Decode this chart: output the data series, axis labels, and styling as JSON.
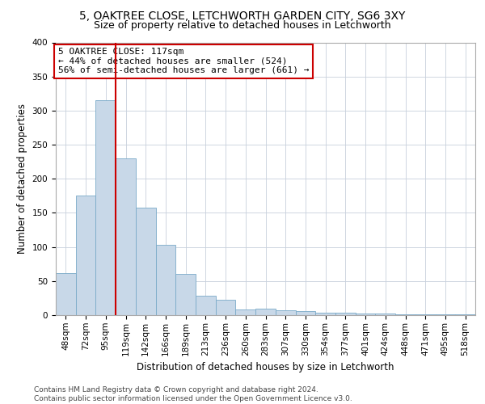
{
  "title": "5, OAKTREE CLOSE, LETCHWORTH GARDEN CITY, SG6 3XY",
  "subtitle": "Size of property relative to detached houses in Letchworth",
  "xlabel": "Distribution of detached houses by size in Letchworth",
  "ylabel": "Number of detached properties",
  "categories": [
    "48sqm",
    "72sqm",
    "95sqm",
    "119sqm",
    "142sqm",
    "166sqm",
    "189sqm",
    "213sqm",
    "236sqm",
    "260sqm",
    "283sqm",
    "307sqm",
    "330sqm",
    "354sqm",
    "377sqm",
    "401sqm",
    "424sqm",
    "448sqm",
    "471sqm",
    "495sqm",
    "518sqm"
  ],
  "values": [
    62,
    175,
    315,
    230,
    158,
    103,
    61,
    28,
    22,
    8,
    10,
    7,
    6,
    4,
    3,
    2,
    2,
    1,
    1,
    1,
    1
  ],
  "bar_color": "#c8d8e8",
  "bar_edge_color": "#7aaac8",
  "annotation_text": "5 OAKTREE CLOSE: 117sqm\n← 44% of detached houses are smaller (524)\n56% of semi-detached houses are larger (661) →",
  "vline_x": 2.5,
  "vline_color": "#cc0000",
  "box_color": "#cc0000",
  "ylim": [
    0,
    400
  ],
  "yticks": [
    0,
    50,
    100,
    150,
    200,
    250,
    300,
    350,
    400
  ],
  "background_color": "#ffffff",
  "grid_color": "#c8d0dc",
  "footer": "Contains HM Land Registry data © Crown copyright and database right 2024.\nContains public sector information licensed under the Open Government Licence v3.0.",
  "title_fontsize": 10,
  "subtitle_fontsize": 9,
  "xlabel_fontsize": 8.5,
  "ylabel_fontsize": 8.5,
  "annotation_fontsize": 8,
  "footer_fontsize": 6.5,
  "tick_fontsize": 7.5
}
